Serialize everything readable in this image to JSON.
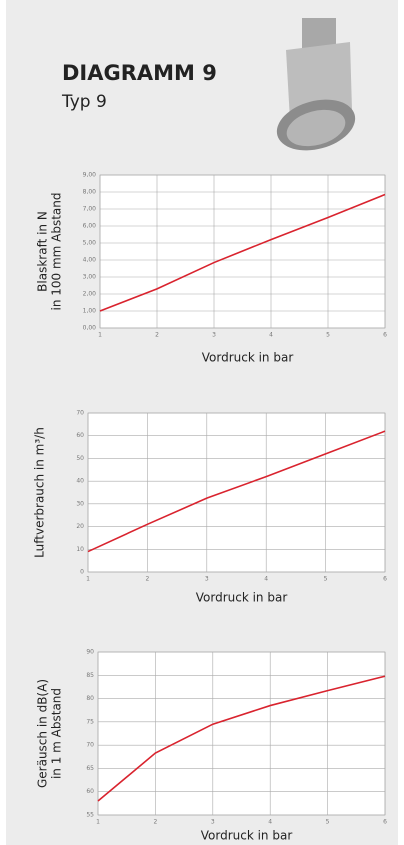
{
  "header": {
    "title": "DIAGRAMM 9",
    "subtitle": "Typ 9"
  },
  "chart_data": [
    {
      "type": "line",
      "ylabel": [
        "Blaskraft in N",
        "in 100 mm Abstand"
      ],
      "xlabel": "Vordruck in bar",
      "x": [
        1,
        2,
        3,
        4,
        5,
        6
      ],
      "xlim": [
        1,
        6
      ],
      "xticks": [
        1,
        2,
        3,
        4,
        5,
        6
      ],
      "ylim": [
        0,
        9
      ],
      "yticks": [
        {
          "value": 0,
          "label": "0,00"
        },
        {
          "value": 1,
          "label": "1,00"
        },
        {
          "value": 2,
          "label": "2,00"
        },
        {
          "value": 3,
          "label": "3,00"
        },
        {
          "value": 4,
          "label": "4,00"
        },
        {
          "value": 5,
          "label": "5,00"
        },
        {
          "value": 6,
          "label": "6,00"
        },
        {
          "value": 7,
          "label": "7,00"
        },
        {
          "value": 8,
          "label": "8,00"
        },
        {
          "value": 9,
          "label": "9,00"
        }
      ],
      "grid": true,
      "series": [
        {
          "color": "#d9232e",
          "values": [
            1.0,
            2.3,
            3.85,
            5.2,
            6.5,
            7.85
          ]
        }
      ]
    },
    {
      "type": "line",
      "ylabel": [
        "Luftverbrauch in m³/h"
      ],
      "xlabel": "Vordruck in bar",
      "x": [
        1,
        2,
        3,
        4,
        5,
        6
      ],
      "xlim": [
        1,
        6
      ],
      "xticks": [
        1,
        2,
        3,
        4,
        5,
        6
      ],
      "ylim": [
        0,
        70
      ],
      "yticks": [
        0,
        10,
        20,
        30,
        40,
        50,
        60,
        70
      ],
      "grid": true,
      "series": [
        {
          "color": "#d9232e",
          "values": [
            9,
            21,
            32.5,
            42,
            52,
            62
          ]
        }
      ]
    },
    {
      "type": "line",
      "ylabel": [
        "Geräusch in dB(A)",
        "in 1 m Abstand"
      ],
      "xlabel": "Vordruck in bar",
      "x": [
        1,
        2,
        3,
        4,
        5,
        6
      ],
      "xlim": [
        1,
        6
      ],
      "xticks": [
        1,
        2,
        3,
        4,
        5,
        6
      ],
      "ylim": [
        55,
        90
      ],
      "yticks": [
        55,
        60,
        65,
        70,
        75,
        80,
        85,
        90
      ],
      "grid": true,
      "series": [
        {
          "color": "#d9232e",
          "values": [
            58,
            68.3,
            74.5,
            78.5,
            81.7,
            84.8
          ]
        }
      ]
    }
  ]
}
